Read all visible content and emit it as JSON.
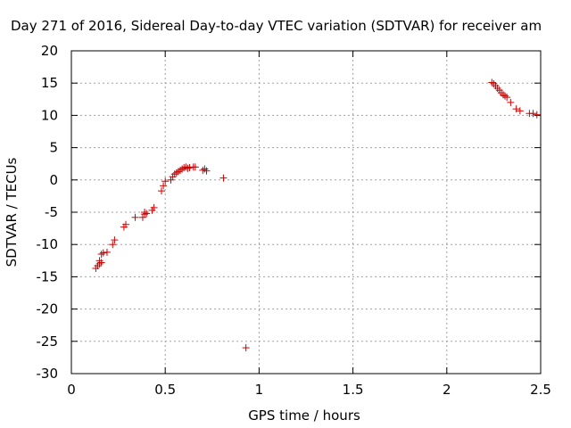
{
  "chart_data": {
    "type": "scatter",
    "title": "Day 271 of 2016, Sidereal Day-to-day VTEC variation (SDTVAR) for receiver am",
    "xlabel": "GPS time / hours",
    "ylabel": "SDTVAR / TECUs",
    "xlim": [
      0,
      2.5
    ],
    "ylim": [
      -30,
      20
    ],
    "xticks": [
      0,
      0.5,
      1,
      1.5,
      2,
      2.5
    ],
    "xtick_labels": [
      "0",
      "0.5",
      "1",
      "1.5",
      "2",
      "2.5"
    ],
    "yticks": [
      -30,
      -25,
      -20,
      -15,
      -10,
      -5,
      0,
      5,
      10,
      15,
      20
    ],
    "ytick_labels": [
      "-30",
      "-25",
      "-20",
      "-15",
      "-10",
      "-5",
      "0",
      "5",
      "10",
      "15",
      "20"
    ],
    "grid": true,
    "marker": "+",
    "color": "#cc0000",
    "series": [
      {
        "x": [
          0.13,
          0.14,
          0.15,
          0.15,
          0.16,
          0.16,
          0.17,
          0.19,
          0.22,
          0.23,
          0.28,
          0.29,
          0.34,
          0.38,
          0.39,
          0.39,
          0.4,
          0.43,
          0.44,
          0.48,
          0.49,
          0.5,
          0.53,
          0.54,
          0.55,
          0.56,
          0.57,
          0.58,
          0.59,
          0.6,
          0.61,
          0.62,
          0.63,
          0.65,
          0.66,
          0.7,
          0.71,
          0.72,
          0.81,
          0.93,
          2.24,
          2.25,
          2.26,
          2.27,
          2.28,
          2.29,
          2.3,
          2.31,
          2.32,
          2.34,
          2.37,
          2.39,
          2.44,
          2.46,
          2.48
        ],
        "y": [
          -13.7,
          -13.3,
          -13.0,
          -12.5,
          -12.8,
          -11.5,
          -11.3,
          -11.2,
          -10.0,
          -9.3,
          -7.3,
          -6.9,
          -5.8,
          -5.8,
          -5.3,
          -5.0,
          -5.2,
          -4.7,
          -4.3,
          -1.7,
          -0.9,
          -0.2,
          0.0,
          0.5,
          0.9,
          1.1,
          1.3,
          1.5,
          1.7,
          1.9,
          2.0,
          1.8,
          1.9,
          2.0,
          2.0,
          1.5,
          1.7,
          1.4,
          0.3,
          -26.0,
          15.1,
          14.9,
          14.6,
          14.2,
          13.9,
          13.5,
          13.2,
          13.0,
          12.8,
          12.0,
          11.0,
          10.7,
          10.3,
          10.3,
          10.1
        ]
      }
    ]
  }
}
